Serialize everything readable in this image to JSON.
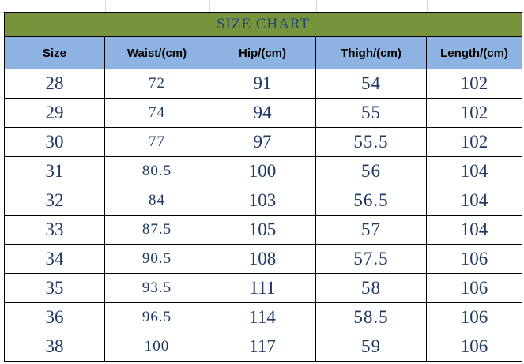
{
  "title": "SIZE CHART",
  "table": {
    "header": [
      "Size",
      "Waist/(cm)",
      "Hip/(cm)",
      "Thigh/(cm)",
      "Length/(cm)"
    ],
    "rows": [
      [
        28,
        72,
        91,
        54,
        102
      ],
      [
        29,
        74,
        94,
        55,
        102
      ],
      [
        30,
        77,
        97,
        55.5,
        102
      ],
      [
        31,
        80.5,
        100,
        56,
        104
      ],
      [
        32,
        84,
        103,
        56.5,
        104
      ],
      [
        33,
        87.5,
        105,
        57,
        104
      ],
      [
        34,
        90.5,
        108,
        57.5,
        106
      ],
      [
        35,
        93.5,
        111,
        58,
        106
      ],
      [
        36,
        96.5,
        114,
        58.5,
        106
      ],
      [
        38,
        100,
        117,
        59,
        106
      ]
    ]
  }
}
